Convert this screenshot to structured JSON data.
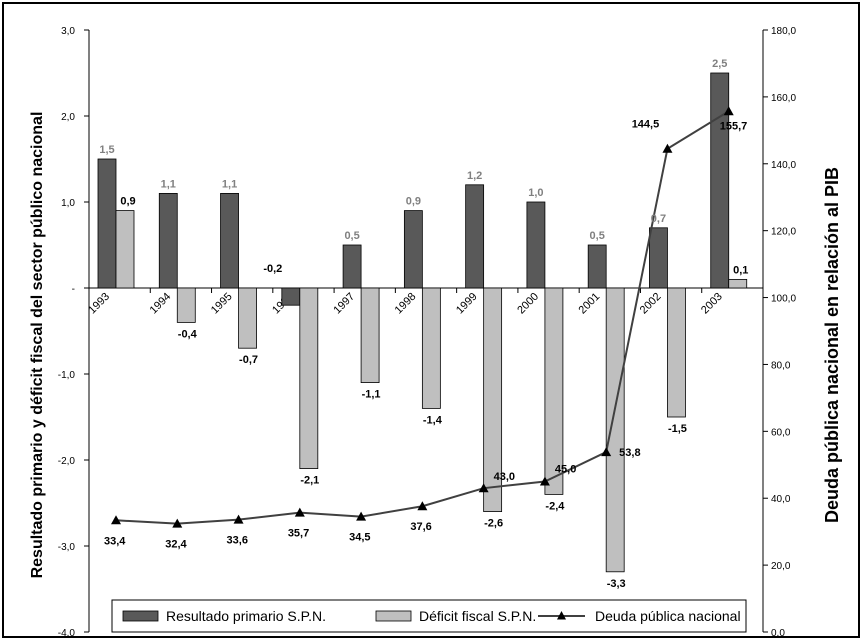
{
  "chart_data": {
    "type": "bar",
    "categories": [
      "1993",
      "1994",
      "1995",
      "1996",
      "1997",
      "1998",
      "1999",
      "2000",
      "2001",
      "2002",
      "2003"
    ],
    "series": [
      {
        "name": "Resultado primario S.P.N.",
        "kind": "bar",
        "axis": "left",
        "color": "#595959",
        "values": [
          1.5,
          1.1,
          1.1,
          -0.2,
          0.5,
          0.9,
          1.2,
          1.0,
          0.5,
          0.7,
          2.5
        ],
        "labels": [
          "1,5",
          "1,1",
          "1,1",
          "-0,2",
          "0,5",
          "0,9",
          "1,2",
          "1,0",
          "0,5",
          "0,7",
          "2,5"
        ]
      },
      {
        "name": "Déficit fiscal S.P.N.",
        "kind": "bar",
        "axis": "left",
        "color": "#bfbfbf",
        "values": [
          0.9,
          -0.4,
          -0.7,
          -2.1,
          -1.1,
          -1.4,
          -2.6,
          -2.4,
          -3.3,
          -1.5,
          0.1
        ],
        "labels": [
          "0,9",
          "-0,4",
          "-0,7",
          "-2,1",
          "-1,1",
          "-1,4",
          "-2,6",
          "-2,4",
          "-3,3",
          "-1,5",
          "0,1"
        ]
      },
      {
        "name": "Deuda pública nacional",
        "kind": "line",
        "axis": "right",
        "color": "#404040",
        "values": [
          33.4,
          32.4,
          33.6,
          35.7,
          34.5,
          37.6,
          43.0,
          45.0,
          53.8,
          144.5,
          155.7
        ],
        "labels": [
          "33,4",
          "32,4",
          "33,6",
          "35,7",
          "34,5",
          "37,6",
          "43,0",
          "45,0",
          "53,8",
          "144,5",
          "155,7"
        ]
      }
    ],
    "ylabel_left": "Resultado primario y déficit fiscal del sector público nacional",
    "ylabel_right": "Deuda pública nacional en relación al PIB",
    "ylim_left": [
      -4,
      3
    ],
    "yticks_left": [
      "3,0",
      "2,0",
      "1,0",
      "-",
      "-1,0",
      "-2,0",
      "-3,0",
      "-4,0"
    ],
    "ylim_right": [
      0,
      180
    ],
    "yticks_right": [
      "180,0",
      "160,0",
      "140,0",
      "120,0",
      "100,0",
      "80,0",
      "60,0",
      "40,0",
      "20,0",
      "0,0"
    ],
    "grid": false,
    "legend_position": "bottom"
  }
}
